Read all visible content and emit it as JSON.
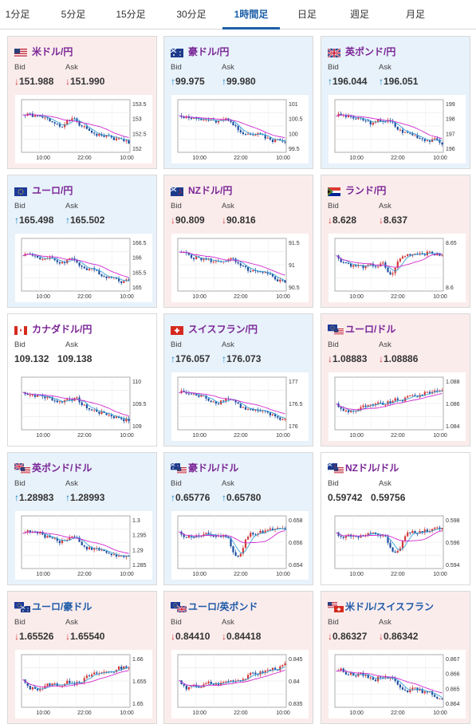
{
  "tabs": [
    {
      "label": "1分足"
    },
    {
      "label": "5分足"
    },
    {
      "label": "15分足"
    },
    {
      "label": "30分足"
    },
    {
      "label": "1時間足",
      "active": true
    },
    {
      "label": "日足"
    },
    {
      "label": "週足"
    },
    {
      "label": "月足"
    }
  ],
  "cards": [
    {
      "pair": "米ドル/円",
      "flag": "us",
      "bg": "pink",
      "bid_label": "Bid",
      "ask_label": "Ask",
      "bid": "151.988",
      "ask": "151.990",
      "direction": "down",
      "chart": {
        "ylabels": [
          "153.5",
          "153",
          "152.5",
          "152"
        ],
        "xlabels": [
          "10:00",
          "22:00",
          "10:00"
        ],
        "seed": 1,
        "trend": "down"
      }
    },
    {
      "pair": "豪ドル/円",
      "flag": "au",
      "bg": "blue",
      "bid_label": "Bid",
      "ask_label": "Ask",
      "bid": "99.975",
      "ask": "99.980",
      "direction": "up",
      "chart": {
        "ylabels": [
          "101",
          "100.5",
          "100",
          "99.5"
        ],
        "xlabels": [
          "10:00",
          "22:00",
          "10:00"
        ],
        "seed": 2,
        "trend": "down"
      }
    },
    {
      "pair": "英ポンド/円",
      "flag": "gb",
      "bg": "blue",
      "bid_label": "Bid",
      "ask_label": "Ask",
      "bid": "196.044",
      "ask": "196.051",
      "direction": "up",
      "chart": {
        "ylabels": [
          "199",
          "198",
          "197",
          "196"
        ],
        "xlabels": [
          "10:00",
          "22:00",
          "10:00"
        ],
        "seed": 3,
        "trend": "down"
      }
    },
    {
      "pair": "ユーロ/円",
      "flag": "eu",
      "bg": "blue",
      "bid_label": "Bid",
      "ask_label": "Ask",
      "bid": "165.498",
      "ask": "165.502",
      "direction": "up",
      "chart": {
        "ylabels": [
          "166.5",
          "166",
          "165.5",
          "165"
        ],
        "xlabels": [
          "10:00",
          "22:00",
          "10:00"
        ],
        "seed": 4,
        "trend": "down"
      }
    },
    {
      "pair": "NZドル/円",
      "flag": "nz",
      "bg": "pink",
      "bid_label": "Bid",
      "ask_label": "Ask",
      "bid": "90.809",
      "ask": "90.816",
      "direction": "down",
      "chart": {
        "ylabels": [
          "91.5",
          "91",
          "90.5"
        ],
        "xlabels": [
          "10:00",
          "22:00",
          "10:00"
        ],
        "seed": 5,
        "trend": "down"
      }
    },
    {
      "pair": "ランド/円",
      "flag": "za",
      "bg": "pink",
      "bid_label": "Bid",
      "ask_label": "Ask",
      "bid": "8.628",
      "ask": "8.637",
      "direction": "down",
      "chart": {
        "ylabels": [
          "8.65",
          "8.6"
        ],
        "xlabels": [
          "10:00",
          "22:00",
          "10:00"
        ],
        "seed": 6,
        "trend": "flat"
      }
    },
    {
      "pair": "カナダドル/円",
      "flag": "ca",
      "bg": "white",
      "bid_label": "Bid",
      "ask_label": "Ask",
      "bid": "109.132",
      "ask": "109.138",
      "direction": "none",
      "chart": {
        "ylabels": [
          "110",
          "109.5",
          "109"
        ],
        "xlabels": [
          "10:00",
          "22:00",
          "10:00"
        ],
        "seed": 7,
        "trend": "down"
      }
    },
    {
      "pair": "スイスフラン/円",
      "flag": "ch",
      "bg": "blue",
      "bid_label": "Bid",
      "ask_label": "Ask",
      "bid": "176.057",
      "ask": "176.073",
      "direction": "up",
      "chart": {
        "ylabels": [
          "177",
          "176.5",
          "176"
        ],
        "xlabels": [
          "10:00",
          "22:00",
          "10:00"
        ],
        "seed": 8,
        "trend": "down"
      }
    },
    {
      "pair": "ユーロ/ドル",
      "flag": "euus",
      "bg": "pink",
      "bid_label": "Bid",
      "ask_label": "Ask",
      "bid": "1.08883",
      "ask": "1.08886",
      "direction": "down",
      "chart": {
        "ylabels": [
          "1.088",
          "1.086",
          "1.084"
        ],
        "xlabels": [
          "10:00",
          "22:00",
          "10:00"
        ],
        "seed": 9,
        "trend": "up"
      }
    },
    {
      "pair": "英ポンド/ドル",
      "flag": "gbus",
      "bg": "blue",
      "bid_label": "Bid",
      "ask_label": "Ask",
      "bid": "1.28983",
      "ask": "1.28993",
      "direction": "up",
      "chart": {
        "ylabels": [
          "1.3",
          "1.295",
          "1.29",
          "1.285"
        ],
        "xlabels": [
          "10:00",
          "22:00",
          "10:00"
        ],
        "seed": 10,
        "trend": "down"
      }
    },
    {
      "pair": "豪ドル/ドル",
      "flag": "auus",
      "bg": "blue",
      "bid_label": "Bid",
      "ask_label": "Ask",
      "bid": "0.65776",
      "ask": "0.65780",
      "direction": "up",
      "chart": {
        "ylabels": [
          "0.658",
          "0.656",
          "0.654"
        ],
        "xlabels": [
          "10:00",
          "22:00",
          "10:00"
        ],
        "seed": 11,
        "trend": "vdip"
      }
    },
    {
      "pair": "NZドル/ドル",
      "flag": "nzus",
      "bg": "white",
      "bid_label": "Bid",
      "ask_label": "Ask",
      "bid": "0.59742",
      "ask": "0.59756",
      "direction": "none",
      "chart": {
        "ylabels": [
          "0.598",
          "0.596",
          "0.594"
        ],
        "xlabels": [
          "10:00",
          "22:00",
          "10:00"
        ],
        "seed": 12,
        "trend": "vdip"
      }
    },
    {
      "pair": "ユーロ/豪ドル",
      "flag": "euau",
      "bg": "pink",
      "bid_label": "Bid",
      "ask_label": "Ask",
      "bid": "1.65526",
      "ask": "1.65540",
      "direction": "down",
      "blueTitle": true,
      "chart": {
        "ylabels": [
          "1.66",
          "1.655",
          "1.65"
        ],
        "xlabels": [
          "10:00",
          "22:00",
          "10:00"
        ],
        "seed": 13,
        "trend": "up"
      }
    },
    {
      "pair": "ユーロ/英ポンド",
      "flag": "eugb",
      "bg": "pink",
      "bid_label": "Bid",
      "ask_label": "Ask",
      "bid": "0.84410",
      "ask": "0.84418",
      "direction": "down",
      "blueTitle": true,
      "chart": {
        "ylabels": [
          "0.845",
          "0.84",
          "0.835"
        ],
        "xlabels": [
          "10:00",
          "22:00",
          "10:00"
        ],
        "seed": 14,
        "trend": "up"
      }
    },
    {
      "pair": "米ドル/スイスフラン",
      "flag": "usch",
      "bg": "pink",
      "bid_label": "Bid",
      "ask_label": "Ask",
      "bid": "0.86327",
      "ask": "0.86342",
      "direction": "down",
      "blueTitle": true,
      "chart": {
        "ylabels": [
          "0.867",
          "0.866",
          "0.865",
          "0.864"
        ],
        "xlabels": [
          "10:00",
          "22:00",
          "10:00"
        ],
        "seed": 15,
        "trend": "down"
      }
    }
  ],
  "colors": {
    "bull": "#d23a3a",
    "bear": "#1d4fa0",
    "ma_short": "#38a3d6",
    "ma_long": "#d22ad0"
  }
}
